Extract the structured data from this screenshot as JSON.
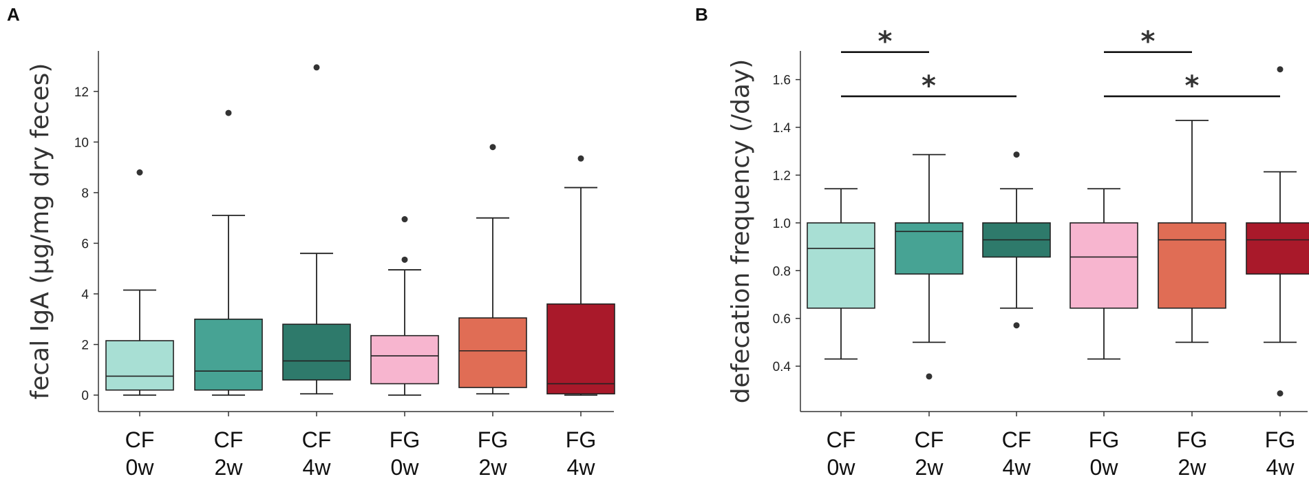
{
  "chart_data": [
    {
      "panel": "A",
      "type": "box",
      "ylabel": "fecal IgA (μg/mg dry feces)",
      "ylim": [
        -0.65,
        13.6
      ],
      "yticks": [
        0,
        2,
        4,
        6,
        8,
        10,
        12
      ],
      "ytick_labels": [
        "0",
        "2",
        "4",
        "6",
        "8",
        "10",
        "12"
      ],
      "categories": [
        {
          "line1": "CF",
          "line2": "0w"
        },
        {
          "line1": "CF",
          "line2": "2w"
        },
        {
          "line1": "CF",
          "line2": "4w"
        },
        {
          "line1": "FG",
          "line2": "0w"
        },
        {
          "line1": "FG",
          "line2": "2w"
        },
        {
          "line1": "FG",
          "line2": "4w"
        }
      ],
      "colors": [
        "#a8dfd4",
        "#47a394",
        "#2e7a6b",
        "#f7b5cf",
        "#e06d55",
        "#a9192a"
      ],
      "boxes": [
        {
          "min": 0.0,
          "q1": 0.2,
          "median": 0.75,
          "q3": 2.15,
          "max": 4.15,
          "outliers": [
            8.8
          ]
        },
        {
          "min": 0.0,
          "q1": 0.2,
          "median": 0.95,
          "q3": 3.0,
          "max": 7.1,
          "outliers": [
            11.15
          ]
        },
        {
          "min": 0.05,
          "q1": 0.6,
          "median": 1.35,
          "q3": 2.8,
          "max": 5.6,
          "outliers": [
            12.95
          ]
        },
        {
          "min": 0.0,
          "q1": 0.45,
          "median": 1.55,
          "q3": 2.35,
          "max": 4.95,
          "outliers": [
            5.35,
            6.95
          ]
        },
        {
          "min": 0.05,
          "q1": 0.3,
          "median": 1.75,
          "q3": 3.05,
          "max": 7.0,
          "outliers": [
            9.8
          ]
        },
        {
          "min": 0.0,
          "q1": 0.05,
          "median": 0.45,
          "q3": 3.6,
          "max": 8.2,
          "outliers": [
            9.35
          ]
        }
      ],
      "significance": []
    },
    {
      "panel": "B",
      "type": "box",
      "ylabel": "defecation frequency (/day)",
      "ylim": [
        0.21,
        1.72
      ],
      "yticks": [
        0.4,
        0.6,
        0.8,
        1.0,
        1.2,
        1.4,
        1.6
      ],
      "ytick_labels": [
        "0.4",
        "0.6",
        "0.8",
        "1.0",
        "1.2",
        "1.4",
        "1.6"
      ],
      "categories": [
        {
          "line1": "CF",
          "line2": "0w"
        },
        {
          "line1": "CF",
          "line2": "2w"
        },
        {
          "line1": "CF",
          "line2": "4w"
        },
        {
          "line1": "FG",
          "line2": "0w"
        },
        {
          "line1": "FG",
          "line2": "2w"
        },
        {
          "line1": "FG",
          "line2": "4w"
        }
      ],
      "colors": [
        "#a8dfd4",
        "#47a394",
        "#2e7a6b",
        "#f7b5cf",
        "#e06d55",
        "#a9192a"
      ],
      "boxes": [
        {
          "min": 0.43,
          "q1": 0.643,
          "median": 0.893,
          "q3": 1.0,
          "max": 1.143,
          "outliers": []
        },
        {
          "min": 0.5,
          "q1": 0.786,
          "median": 0.964,
          "q3": 1.0,
          "max": 1.286,
          "outliers": [
            0.357
          ]
        },
        {
          "min": 0.643,
          "q1": 0.857,
          "median": 0.929,
          "q3": 1.0,
          "max": 1.143,
          "outliers": [
            0.571,
            1.286
          ]
        },
        {
          "min": 0.43,
          "q1": 0.643,
          "median": 0.857,
          "q3": 1.0,
          "max": 1.143,
          "outliers": []
        },
        {
          "min": 0.5,
          "q1": 0.643,
          "median": 0.929,
          "q3": 1.0,
          "max": 1.429,
          "outliers": []
        },
        {
          "min": 0.5,
          "q1": 0.786,
          "median": 0.929,
          "q3": 1.0,
          "max": 1.214,
          "outliers": [
            0.286,
            1.643
          ]
        }
      ],
      "significance": [
        {
          "from": 0,
          "to": 1,
          "y": 1.715,
          "label": "*"
        },
        {
          "from": 0,
          "to": 2,
          "y": 1.53,
          "label": "*"
        },
        {
          "from": 3,
          "to": 4,
          "y": 1.715,
          "label": "*"
        },
        {
          "from": 3,
          "to": 5,
          "y": 1.53,
          "label": "*"
        }
      ]
    }
  ]
}
